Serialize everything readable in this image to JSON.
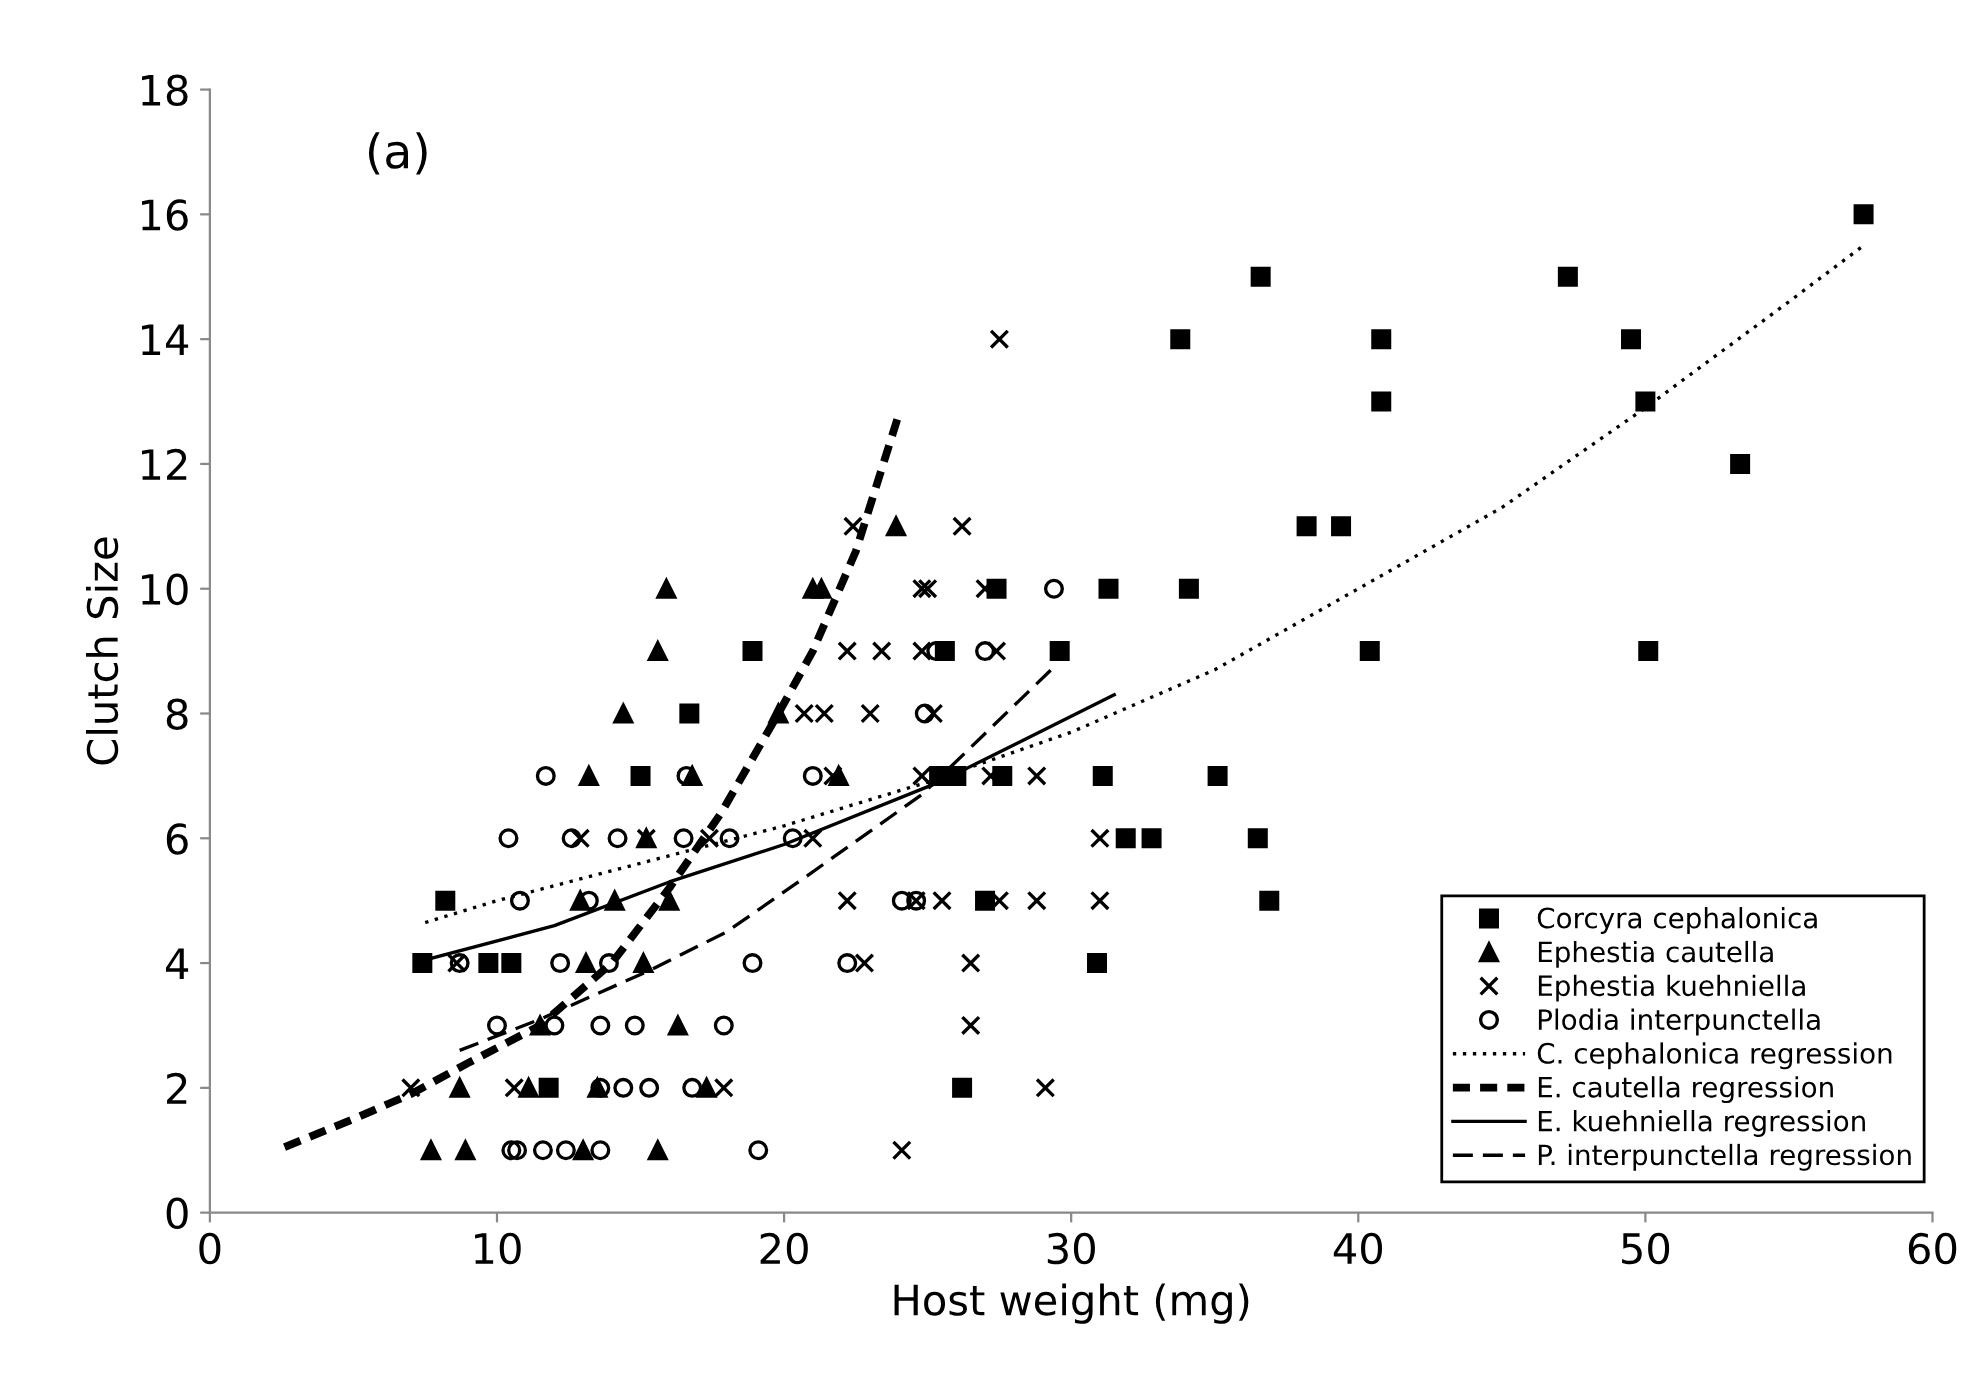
{
  "chart_data": {
    "type": "scatter",
    "xlabel": "Host weight (mg)",
    "ylabel": "Clutch Size",
    "annotations": [
      "(a)"
    ],
    "xlim": [
      0,
      60
    ],
    "ylim": [
      0,
      18
    ],
    "xticks": [
      0,
      10,
      20,
      30,
      40,
      50,
      60
    ],
    "yticks": [
      0,
      2,
      4,
      6,
      8,
      10,
      12,
      14,
      16,
      18
    ],
    "grid": false,
    "legend": "bottom right",
    "series": [
      {
        "name": "Corcyra cephalonica",
        "marker": "square",
        "color": "#000000",
        "x": [
          8.2,
          7.4,
          9.7,
          10.5,
          11.8,
          15.0,
          16.7,
          18.9,
          25.6,
          25.4,
          26.0,
          27.6,
          27.4,
          27.0,
          26.2,
          29.6,
          31.3,
          34.1,
          31.1,
          35.1,
          31.9,
          32.8,
          36.5,
          36.9,
          30.9,
          33.8,
          36.6,
          38.2,
          39.4,
          57.6,
          47.3,
          40.8,
          49.5,
          40.8,
          50.0,
          53.3,
          40.4,
          50.1
        ],
        "values": [
          5,
          4,
          4,
          4,
          2,
          7,
          8,
          9,
          9,
          7,
          7,
          7,
          10,
          5,
          2,
          9,
          10,
          10,
          7,
          7,
          6,
          6,
          6,
          5,
          4,
          14,
          15,
          11,
          11,
          16,
          15,
          14,
          14,
          13,
          13,
          12,
          9,
          9
        ]
      },
      {
        "name": "Ephestia cautella",
        "marker": "triangle",
        "color": "#000000",
        "x": [
          15.9,
          15.6,
          14.4,
          13.2,
          16.8,
          15.2,
          12.9,
          14.1,
          16.0,
          13.1,
          15.1,
          11.5,
          16.3,
          8.7,
          11.1,
          13.5,
          17.3,
          7.7,
          8.9,
          13.0,
          15.6,
          23.9,
          21.0,
          21.3,
          19.8,
          21.9
        ],
        "values": [
          10,
          9,
          8,
          7,
          7,
          6,
          5,
          5,
          5,
          4,
          4,
          3,
          3,
          2,
          2,
          2,
          2,
          1,
          1,
          1,
          1,
          11,
          10,
          10,
          8,
          7
        ]
      },
      {
        "name": "Ephestia kuehniella",
        "marker": "cross",
        "color": "#000000",
        "x": [
          12.9,
          15.2,
          17.4,
          8.6,
          7.0,
          10.6,
          17.9,
          27.5,
          22.4,
          26.2,
          24.8,
          25.0,
          27.0,
          22.2,
          23.4,
          24.8,
          27.4,
          20.7,
          21.4,
          23.0,
          25.2,
          21.7,
          24.8,
          27.2,
          28.8,
          21.0,
          31.0,
          22.2,
          24.6,
          25.5,
          27.5,
          28.8,
          31.0,
          22.8,
          26.5,
          26.5,
          29.1,
          24.1
        ],
        "values": [
          6,
          6,
          6,
          4,
          2,
          2,
          2,
          14,
          11,
          11,
          10,
          10,
          10,
          9,
          9,
          9,
          9,
          8,
          8,
          8,
          8,
          7,
          7,
          7,
          7,
          6,
          6,
          5,
          5,
          5,
          5,
          5,
          5,
          4,
          4,
          3,
          2,
          1
        ]
      },
      {
        "name": "Plodia interpunctella",
        "marker": "circle",
        "color": "#000000",
        "x": [
          11.7,
          16.6,
          10.4,
          12.6,
          14.2,
          16.5,
          18.1,
          10.8,
          13.2,
          8.7,
          12.2,
          13.9,
          18.9,
          10.0,
          12.0,
          13.6,
          14.8,
          17.9,
          13.6,
          14.4,
          15.3,
          16.8,
          10.5,
          10.7,
          11.6,
          12.4,
          13.6,
          19.1,
          29.4,
          25.3,
          27.0,
          24.9,
          21.0,
          20.3,
          24.1,
          24.6,
          22.2
        ],
        "values": [
          7,
          7,
          6,
          6,
          6,
          6,
          6,
          5,
          5,
          4,
          4,
          4,
          4,
          3,
          3,
          3,
          3,
          3,
          2,
          2,
          2,
          2,
          1,
          1,
          1,
          1,
          1,
          1,
          10,
          9,
          9,
          8,
          7,
          6,
          5,
          5,
          4
        ]
      },
      {
        "name": "C. cephalonica regression",
        "type": "line",
        "line_style": "dotted",
        "color": "#000000",
        "x": [
          7.5,
          10,
          15,
          20,
          25,
          30,
          35,
          40,
          45,
          50,
          55,
          57.6
        ],
        "values": [
          4.65,
          5.0,
          5.6,
          6.2,
          6.9,
          7.7,
          8.7,
          10.0,
          11.3,
          12.9,
          14.6,
          15.5
        ]
      },
      {
        "name": "E. cautella regression",
        "type": "line",
        "line_style": "dashed",
        "color": "#000000",
        "x": [
          2.6,
          5,
          7,
          9,
          11.5,
          14,
          16,
          17.8,
          19.8,
          21,
          22.5,
          24
        ],
        "values": [
          1.05,
          1.5,
          1.9,
          2.4,
          3.0,
          4.0,
          5.2,
          6.4,
          8.0,
          9.0,
          10.6,
          12.8
        ]
      },
      {
        "name": "E. kuehniella regression",
        "type": "line",
        "line_style": "solid",
        "color": "#000000",
        "x": [
          7.5,
          12,
          16,
          20,
          25.4,
          31.5
        ],
        "values": [
          4.05,
          4.6,
          5.3,
          5.9,
          6.9,
          8.3
        ]
      },
      {
        "name": "P. interpunctella regression",
        "type": "line",
        "line_style": "dashed",
        "color": "#000000",
        "x": [
          8.7,
          11.5,
          15.4,
          18,
          20.5,
          24.8,
          29.3
        ],
        "values": [
          2.6,
          3.1,
          3.9,
          4.5,
          5.3,
          6.7,
          8.7
        ]
      }
    ]
  }
}
